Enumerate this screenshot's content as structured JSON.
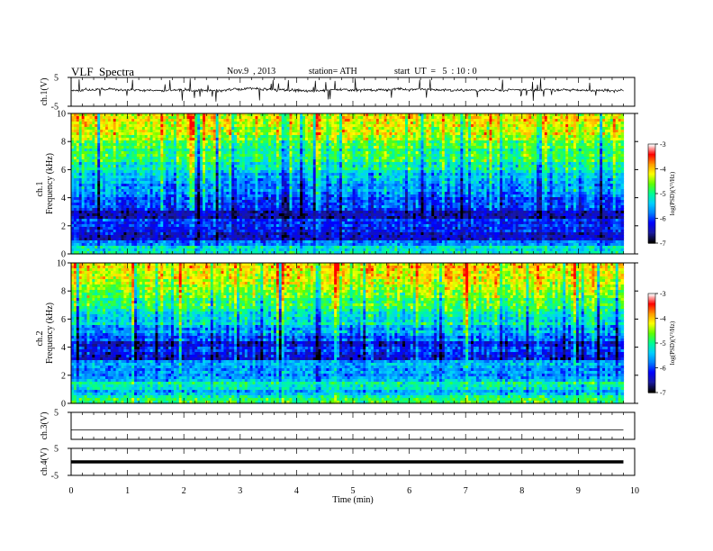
{
  "header": {
    "title": "VLF  Spectra",
    "date": "Nov.9  , 2013",
    "station": "station= ATH",
    "start": "start  UT  =   5  : 10 : 0"
  },
  "chart_data": [
    {
      "type": "line",
      "panel": "ch1-waveform",
      "ylabel": "ch.1(V)",
      "ylim": [
        -5,
        5
      ],
      "yticks": [
        "5",
        "-5"
      ],
      "xlim": [
        0,
        10
      ],
      "description_values": {
        "baseline_v": 0.6,
        "noise_amplitude_v": 0.6,
        "data_end_min": 9.8
      }
    },
    {
      "type": "heatmap",
      "panel": "ch1-spectrogram",
      "ylabel_outer": "ch.1",
      "ylabel": "Frequency  (kHz)",
      "ylim": [
        0,
        10
      ],
      "yticks": [
        "0",
        "2",
        "4",
        "6",
        "8",
        "10"
      ],
      "xlim": [
        0,
        10
      ],
      "colorbar": {
        "label": "log(PSD)(V²/Hz)",
        "range": [
          -7,
          -3
        ],
        "ticks": [
          "-3",
          "-4",
          "-5",
          "-6",
          "-7"
        ]
      },
      "band_profile_log_psd": [
        {
          "freq_khz": 0.25,
          "value": -5.0
        },
        {
          "freq_khz": 0.75,
          "value": -5.6
        },
        {
          "freq_khz": 1.25,
          "value": -6.3
        },
        {
          "freq_khz": 1.75,
          "value": -6.1
        },
        {
          "freq_khz": 2.25,
          "value": -5.9
        },
        {
          "freq_khz": 2.75,
          "value": -6.4
        },
        {
          "freq_khz": 3.25,
          "value": -5.9
        },
        {
          "freq_khz": 3.75,
          "value": -5.8
        },
        {
          "freq_khz": 4.25,
          "value": -5.6
        },
        {
          "freq_khz": 4.75,
          "value": -5.5
        },
        {
          "freq_khz": 5.25,
          "value": -5.3
        },
        {
          "freq_khz": 5.75,
          "value": -5.1
        },
        {
          "freq_khz": 6.25,
          "value": -4.9
        },
        {
          "freq_khz": 6.75,
          "value": -4.7
        },
        {
          "freq_khz": 7.25,
          "value": -4.6
        },
        {
          "freq_khz": 7.75,
          "value": -4.4
        },
        {
          "freq_khz": 8.25,
          "value": -4.2
        },
        {
          "freq_khz": 8.75,
          "value": -4.0
        },
        {
          "freq_khz": 9.25,
          "value": -3.9
        },
        {
          "freq_khz": 9.75,
          "value": -3.8
        }
      ],
      "data_end_min": 9.8
    },
    {
      "type": "heatmap",
      "panel": "ch2-spectrogram",
      "ylabel_outer": "ch.2",
      "ylabel": "Frequency  (kHz)",
      "ylim": [
        0,
        10
      ],
      "yticks": [
        "0",
        "2",
        "4",
        "6",
        "8",
        "10"
      ],
      "xlim": [
        0,
        10
      ],
      "colorbar": {
        "label": "log(PSD)(V²/Hz)",
        "range": [
          -7,
          -3
        ],
        "ticks": [
          "-3",
          "-4",
          "-5",
          "-6",
          "-7"
        ]
      },
      "band_profile_log_psd": [
        {
          "freq_khz": 0.25,
          "value": -4.6
        },
        {
          "freq_khz": 0.75,
          "value": -5.2
        },
        {
          "freq_khz": 1.25,
          "value": -4.9
        },
        {
          "freq_khz": 1.75,
          "value": -5.4
        },
        {
          "freq_khz": 2.25,
          "value": -5.6
        },
        {
          "freq_khz": 2.75,
          "value": -5.4
        },
        {
          "freq_khz": 3.25,
          "value": -6.2
        },
        {
          "freq_khz": 3.75,
          "value": -6.0
        },
        {
          "freq_khz": 4.25,
          "value": -6.3
        },
        {
          "freq_khz": 4.75,
          "value": -5.7
        },
        {
          "freq_khz": 5.25,
          "value": -5.4
        },
        {
          "freq_khz": 5.75,
          "value": -5.1
        },
        {
          "freq_khz": 6.25,
          "value": -4.9
        },
        {
          "freq_khz": 6.75,
          "value": -4.7
        },
        {
          "freq_khz": 7.25,
          "value": -4.6
        },
        {
          "freq_khz": 7.75,
          "value": -4.4
        },
        {
          "freq_khz": 8.25,
          "value": -4.2
        },
        {
          "freq_khz": 8.75,
          "value": -4.0
        },
        {
          "freq_khz": 9.25,
          "value": -3.9
        },
        {
          "freq_khz": 9.75,
          "value": -3.8
        }
      ],
      "data_end_min": 9.8
    },
    {
      "type": "line",
      "panel": "ch3-waveform",
      "ylabel": "ch.3(V)",
      "ylim": [
        -5,
        5
      ],
      "yticks": [
        "5"
      ],
      "xlim": [
        0,
        10
      ],
      "description_values": {
        "baseline_v": -1.5,
        "data_end_min": 9.8
      }
    },
    {
      "type": "line",
      "panel": "ch4-waveform",
      "ylabel": "ch.4(V)",
      "ylim": [
        -5,
        5
      ],
      "yticks": [
        "5",
        "-5"
      ],
      "xlim": [
        0,
        10
      ],
      "description_values": {
        "baseline_v": 0.0,
        "data_end_min": 9.8
      }
    }
  ],
  "xaxis": {
    "label": "Time  (min)",
    "ticks": [
      "0",
      "1",
      "2",
      "3",
      "4",
      "5",
      "6",
      "7",
      "8",
      "9",
      "10"
    ]
  },
  "colors": {
    "colormap": [
      "#000000",
      "#1a1aa0",
      "#0000ff",
      "#0080ff",
      "#00d0ff",
      "#00ff90",
      "#60ff00",
      "#ffff00",
      "#ff9900",
      "#ff0000",
      "#ffffff"
    ]
  }
}
